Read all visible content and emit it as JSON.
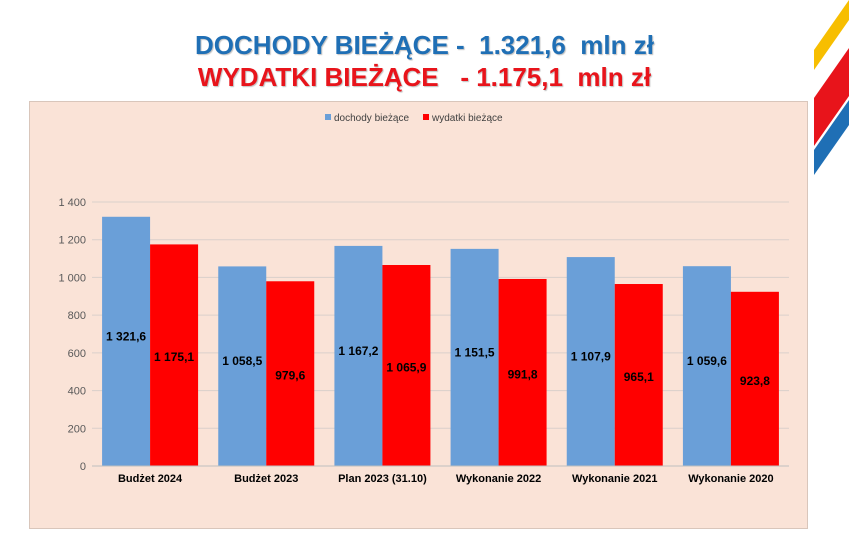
{
  "slide": {
    "title_line1": "DOCHODY BIEŻĄCE -  1.321,6  mln zł",
    "title_line2": "WYDATKI BIEŻĄCE   - 1.175,1  mln zł",
    "colors": {
      "title1": "#1f6fb5",
      "title2": "#e8141b",
      "deco_yellow": "#f7be00",
      "deco_red": "#e8141b",
      "deco_blue": "#1f6fb5",
      "chart_background": "#fae3d7"
    },
    "decoration_icon": "diagonal-color-stripes"
  },
  "chart_data": {
    "type": "bar",
    "categories": [
      "Budżet 2024",
      "Budżet 2023",
      "Plan 2023 (31.10)",
      "Wykonanie 2022",
      "Wykonanie 2021",
      "Wykonanie 2020"
    ],
    "series": [
      {
        "name": "dochody bieżące",
        "color": "#6a9fd8",
        "values": [
          1321.6,
          1058.5,
          1167.2,
          1151.5,
          1107.9,
          1059.6
        ],
        "labels": [
          "1 321,6",
          "1 058,5",
          "1 167,2",
          "1 151,5",
          "1 107,9",
          "1 059,6"
        ]
      },
      {
        "name": "wydatki bieżące",
        "color": "#ff0000",
        "values": [
          1175.1,
          979.6,
          1065.9,
          991.8,
          965.1,
          923.8
        ],
        "labels": [
          "1 175,1",
          "979,6",
          "1 065,9",
          "991,8",
          "965,1",
          "923,8"
        ]
      }
    ],
    "yticks": [
      0,
      200,
      400,
      600,
      800,
      1000,
      1200,
      1400
    ],
    "ytick_labels": [
      "0",
      "200",
      "400",
      "600",
      "800",
      "1 000",
      "1 200",
      "1 400"
    ],
    "ylim": [
      0,
      1400
    ],
    "grid": true,
    "legend_position": "top-center"
  }
}
